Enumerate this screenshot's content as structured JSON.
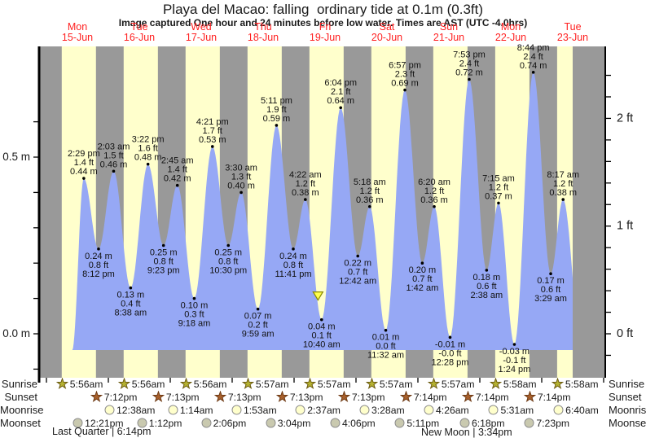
{
  "title": "Playa del Macao: falling  ordinary tide at 0.1m (0.3ft)",
  "subtitle": "Image captured One hour and 24 minutes before low water. Times are AST (UTC -4.0hrs)",
  "colors": {
    "day_band": "#ffffcc",
    "night_band": "#999999",
    "tide_fill": "#96a8f5",
    "day_label_red": "#ff2020",
    "marker_fill": "#ffff4d",
    "marker_border": "#8a8a00",
    "sunrise_star": "#b5b231",
    "sunrise_star_border": "#6b5a10",
    "sunset_star": "#a8602c",
    "sunset_star_border": "#6e3a14",
    "moonrise_fill": "#ffffcc",
    "moonset_fill": "#c9c9af",
    "moon_border": "#8f8f8f",
    "text": "#1a1a1a"
  },
  "days": [
    {
      "name": "Mon",
      "date": "15-Jun"
    },
    {
      "name": "Tue",
      "date": "16-Jun"
    },
    {
      "name": "Wed",
      "date": "17-Jun"
    },
    {
      "name": "Thu",
      "date": "18-Jun"
    },
    {
      "name": "Fri",
      "date": "19-Jun"
    },
    {
      "name": "Sat",
      "date": "20-Jun"
    },
    {
      "name": "Sun",
      "date": "21-Jun"
    },
    {
      "name": "Mon",
      "date": "22-Jun"
    },
    {
      "name": "Tue",
      "date": "23-Jun"
    }
  ],
  "chart_data": {
    "type": "area",
    "title": "Playa del Macao: falling  ordinary tide at 0.1m (0.3ft)",
    "unit_left": "m",
    "unit_right": "ft",
    "ylim_m": [
      -0.12,
      0.81
    ],
    "left_axis": {
      "labeled_ticks": [
        {
          "value_m": 0.5,
          "text": "0.5 m"
        },
        {
          "value_m": 0.0,
          "text": "0.0 m"
        }
      ],
      "tick_values_m": [
        0.6,
        0.5,
        0.4,
        0.3,
        0.2,
        0.1,
        0.0,
        -0.1
      ]
    },
    "right_axis": {
      "labeled_ticks": [
        {
          "value_ft": 2,
          "text": "2 ft"
        },
        {
          "value_ft": 1,
          "text": "1 ft"
        },
        {
          "value_ft": 0,
          "text": "0 ft"
        }
      ],
      "tick_step_ft": 0.2,
      "tick_min_ft": -0.2,
      "tick_max_ft": 2.4
    },
    "events": [
      {
        "kind": "high",
        "day": 0,
        "hour": 14.483,
        "height_m": 0.44,
        "label": [
          "2:29 pm",
          "1.4 ft",
          "0.44 m"
        ]
      },
      {
        "kind": "low",
        "day": 0,
        "hour": 20.2,
        "height_m": 0.24,
        "label": [
          "0.24 m",
          "0.8 ft",
          "8:12 pm"
        ]
      },
      {
        "kind": "high",
        "day": 1,
        "hour": 2.05,
        "height_m": 0.46,
        "label": [
          "2:03 am",
          "1.5 ft",
          "0.46 m"
        ]
      },
      {
        "kind": "low",
        "day": 1,
        "hour": 8.633,
        "height_m": 0.13,
        "label": [
          "0.13 m",
          "0.4 ft",
          "8:38 am"
        ]
      },
      {
        "kind": "high",
        "day": 1,
        "hour": 15.367,
        "height_m": 0.48,
        "label": [
          "3:22 pm",
          "1.6 ft",
          "0.48 m"
        ]
      },
      {
        "kind": "low",
        "day": 1,
        "hour": 21.383,
        "height_m": 0.25,
        "label": [
          "0.25 m",
          "0.8 ft",
          "9:23 pm"
        ]
      },
      {
        "kind": "high",
        "day": 2,
        "hour": 2.75,
        "height_m": 0.42,
        "label": [
          "2:45 am",
          "1.4 ft",
          "0.42 m"
        ]
      },
      {
        "kind": "low",
        "day": 2,
        "hour": 9.3,
        "height_m": 0.1,
        "label": [
          "0.10 m",
          "0.3 ft",
          "9:18 am"
        ]
      },
      {
        "kind": "high",
        "day": 2,
        "hour": 16.35,
        "height_m": 0.53,
        "label": [
          "4:21 pm",
          "1.7 ft",
          "0.53 m"
        ]
      },
      {
        "kind": "low",
        "day": 2,
        "hour": 22.5,
        "height_m": 0.25,
        "label": [
          "0.25 m",
          "0.8 ft",
          "10:30 pm"
        ]
      },
      {
        "kind": "high",
        "day": 3,
        "hour": 3.5,
        "height_m": 0.4,
        "label": [
          "3:30 am",
          "1.3 ft",
          "0.40 m"
        ]
      },
      {
        "kind": "low",
        "day": 3,
        "hour": 9.983,
        "height_m": 0.07,
        "label": [
          "0.07 m",
          "0.2 ft",
          "9:59 am"
        ]
      },
      {
        "kind": "high",
        "day": 3,
        "hour": 17.183,
        "height_m": 0.59,
        "label": [
          "5:11 pm",
          "1.9 ft",
          "0.59 m"
        ]
      },
      {
        "kind": "low",
        "day": 3,
        "hour": 23.683,
        "height_m": 0.24,
        "label": [
          "0.24 m",
          "0.8 ft",
          "11:41 pm"
        ]
      },
      {
        "kind": "high",
        "day": 4,
        "hour": 4.367,
        "height_m": 0.38,
        "label": [
          "4:22 am",
          "1.2 ft",
          "0.38 m"
        ]
      },
      {
        "kind": "low",
        "day": 4,
        "hour": 10.667,
        "height_m": 0.04,
        "label": [
          "0.04 m",
          "0.1 ft",
          "10:40 am"
        ]
      },
      {
        "kind": "high",
        "day": 4,
        "hour": 18.067,
        "height_m": 0.64,
        "label": [
          "6:04 pm",
          "2.1 ft",
          "0.64 m"
        ]
      },
      {
        "kind": "low",
        "day": 5,
        "hour": 0.7,
        "height_m": 0.22,
        "label": [
          "0.22 m",
          "0.7 ft",
          "12:42 am"
        ]
      },
      {
        "kind": "high",
        "day": 5,
        "hour": 5.3,
        "height_m": 0.36,
        "label": [
          "5:18 am",
          "1.2 ft",
          "0.36 m"
        ]
      },
      {
        "kind": "low",
        "day": 5,
        "hour": 11.533,
        "height_m": 0.01,
        "label": [
          "0.01 m",
          "0.0 ft",
          "11:32 am"
        ]
      },
      {
        "kind": "high",
        "day": 5,
        "hour": 18.95,
        "height_m": 0.69,
        "label": [
          "6:57 pm",
          "2.3 ft",
          "0.69 m"
        ]
      },
      {
        "kind": "low",
        "day": 6,
        "hour": 1.7,
        "height_m": 0.2,
        "label": [
          "0.20 m",
          "0.7 ft",
          "1:42 am"
        ]
      },
      {
        "kind": "high",
        "day": 6,
        "hour": 6.333,
        "height_m": 0.36,
        "label": [
          "6:20 am",
          "1.2 ft",
          "0.36 m"
        ]
      },
      {
        "kind": "low",
        "day": 6,
        "hour": 12.467,
        "height_m": -0.01,
        "label": [
          "-0.01 m",
          "-0.0 ft",
          "12:28 pm"
        ]
      },
      {
        "kind": "high",
        "day": 6,
        "hour": 19.883,
        "height_m": 0.72,
        "label": [
          "7:53 pm",
          "2.4 ft",
          "0.72 m"
        ]
      },
      {
        "kind": "low",
        "day": 7,
        "hour": 2.633,
        "height_m": 0.18,
        "label": [
          "0.18 m",
          "0.6 ft",
          "2:38 am"
        ]
      },
      {
        "kind": "high",
        "day": 7,
        "hour": 7.25,
        "height_m": 0.37,
        "label": [
          "7:15 am",
          "1.2 ft",
          "0.37 m"
        ]
      },
      {
        "kind": "low",
        "day": 7,
        "hour": 13.4,
        "height_m": -0.03,
        "label": [
          "-0.03 m",
          "-0.1 ft",
          "1:24 pm"
        ]
      },
      {
        "kind": "high",
        "day": 7,
        "hour": 20.733,
        "height_m": 0.74,
        "label": [
          "8:44 pm",
          "2.4 ft",
          "0.74 m"
        ]
      },
      {
        "kind": "low",
        "day": 8,
        "hour": 3.483,
        "height_m": 0.17,
        "label": [
          "0.17 m",
          "0.6 ft",
          "3:29 am"
        ]
      },
      {
        "kind": "high",
        "day": 8,
        "hour": 8.283,
        "height_m": 0.38,
        "label": [
          "8:17 am",
          "1.2 ft",
          "0.38 m"
        ]
      }
    ],
    "current_marker": {
      "day": 4,
      "hour": 9.27,
      "height_m": 0.1
    }
  },
  "astro": {
    "rows": [
      {
        "key": "sunrise",
        "label": "Sunrise",
        "icon": "sunrise-star-icon",
        "items": [
          {
            "day": 0,
            "hour": 5.933,
            "time": "5:56am"
          },
          {
            "day": 1,
            "hour": 5.933,
            "time": "5:56am"
          },
          {
            "day": 2,
            "hour": 5.933,
            "time": "5:56am"
          },
          {
            "day": 3,
            "hour": 5.95,
            "time": "5:57am"
          },
          {
            "day": 4,
            "hour": 5.95,
            "time": "5:57am"
          },
          {
            "day": 5,
            "hour": 5.95,
            "time": "5:57am"
          },
          {
            "day": 6,
            "hour": 5.95,
            "time": "5:57am"
          },
          {
            "day": 7,
            "hour": 5.967,
            "time": "5:58am"
          },
          {
            "day": 8,
            "hour": 5.967,
            "time": "5:58am"
          }
        ]
      },
      {
        "key": "sunset",
        "label": "Sunset",
        "icon": "sunset-star-icon",
        "items": [
          {
            "day": 0,
            "hour": 19.2,
            "time": "7:12pm"
          },
          {
            "day": 1,
            "hour": 19.217,
            "time": "7:13pm"
          },
          {
            "day": 2,
            "hour": 19.217,
            "time": "7:13pm"
          },
          {
            "day": 3,
            "hour": 19.217,
            "time": "7:13pm"
          },
          {
            "day": 4,
            "hour": 19.217,
            "time": "7:13pm"
          },
          {
            "day": 5,
            "hour": 19.233,
            "time": "7:14pm"
          },
          {
            "day": 6,
            "hour": 19.233,
            "time": "7:14pm"
          },
          {
            "day": 7,
            "hour": 19.233,
            "time": "7:14pm"
          }
        ]
      },
      {
        "key": "moonrise",
        "label": "Moonrise",
        "icon": "moonrise-circle-icon",
        "items": [
          {
            "day": 1,
            "hour": 0.633,
            "time": "12:38am"
          },
          {
            "day": 2,
            "hour": 1.233,
            "time": "1:14am"
          },
          {
            "day": 3,
            "hour": 1.883,
            "time": "1:53am"
          },
          {
            "day": 4,
            "hour": 2.617,
            "time": "2:37am"
          },
          {
            "day": 5,
            "hour": 3.467,
            "time": "3:28am"
          },
          {
            "day": 6,
            "hour": 4.433,
            "time": "4:26am"
          },
          {
            "day": 7,
            "hour": 5.517,
            "time": "5:31am"
          },
          {
            "day": 8,
            "hour": 6.667,
            "time": "6:40am"
          }
        ]
      },
      {
        "key": "moonset",
        "label": "Moonset",
        "icon": "moonset-circle-icon",
        "items": [
          {
            "day": 0,
            "hour": 12.35,
            "time": "12:21pm"
          },
          {
            "day": 1,
            "hour": 13.2,
            "time": "1:12pm"
          },
          {
            "day": 2,
            "hour": 14.1,
            "time": "2:06pm"
          },
          {
            "day": 3,
            "hour": 15.067,
            "time": "3:04pm"
          },
          {
            "day": 4,
            "hour": 16.1,
            "time": "4:06pm"
          },
          {
            "day": 5,
            "hour": 17.183,
            "time": "5:11pm"
          },
          {
            "day": 6,
            "hour": 18.3,
            "time": "6:18pm"
          },
          {
            "day": 7,
            "hour": 19.383,
            "time": "7:23pm"
          }
        ]
      }
    ]
  },
  "phases": [
    {
      "label": "Last Quarter | 6:14pm"
    },
    {
      "label": "New Moon | 3:34pm"
    }
  ]
}
